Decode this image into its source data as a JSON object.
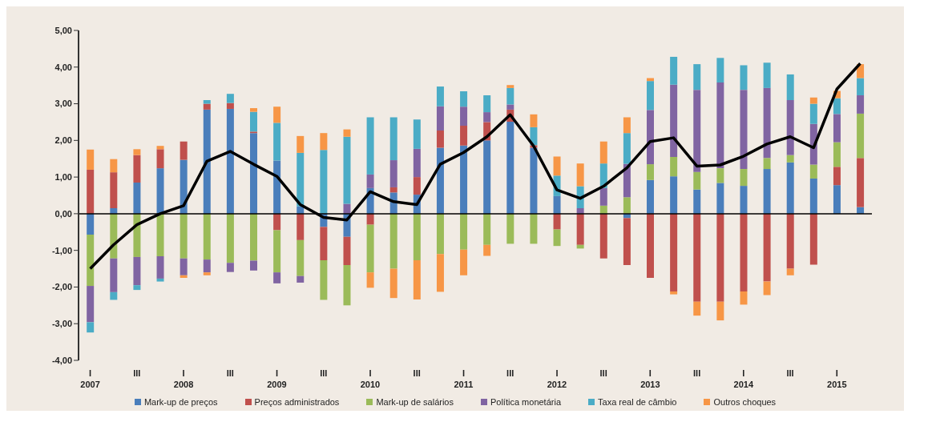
{
  "chart_data": {
    "type": "bar",
    "stacked": true,
    "categories": [
      "I\n2007",
      null,
      "III",
      null,
      "I\n2008",
      null,
      "III",
      null,
      "I\n2009",
      null,
      "III",
      null,
      "I\n2010",
      null,
      "III",
      null,
      "I\n2011",
      null,
      "III",
      null,
      "I\n2012",
      null,
      "III",
      null,
      "I\n2013",
      null,
      "III",
      null,
      "I\n2014",
      null,
      "III",
      null,
      "I\n2015",
      null
    ],
    "series": [
      {
        "name": "Mark-up de preços",
        "color": "#4a7ebb",
        "values": [
          -0.57,
          0.15,
          0.85,
          1.24,
          1.47,
          2.84,
          2.86,
          2.2,
          1.45,
          0.2,
          -0.36,
          -0.63,
          0.7,
          0.58,
          0.52,
          1.8,
          1.86,
          2.0,
          2.51,
          1.8,
          0.48,
          0,
          0,
          -0.12,
          0.92,
          1.02,
          0.66,
          0.84,
          0.76,
          1.22,
          1.4,
          0.96,
          0.78,
          0.18
        ]
      },
      {
        "name": "Preços administrados",
        "color": "#c0504d",
        "values": [
          1.2,
          0.98,
          0.75,
          0.52,
          0.5,
          0.16,
          0.16,
          0.04,
          -0.45,
          -0.72,
          -0.91,
          -0.77,
          -0.3,
          0.14,
          0.48,
          0.47,
          0.54,
          0.5,
          0.33,
          0.07,
          -0.43,
          -0.85,
          -1.22,
          -1.28,
          -1.75,
          -2.12,
          -2.4,
          -2.4,
          -2.12,
          -1.85,
          -1.5,
          -1.39,
          0.5,
          1.34
        ]
      },
      {
        "name": "Mark-up de salários",
        "color": "#9bbb59",
        "values": [
          -1.4,
          -1.22,
          -1.18,
          -1.16,
          -1.22,
          -1.25,
          -1.34,
          -1.28,
          -1.15,
          -0.98,
          -1.08,
          -1.1,
          -1.3,
          -1.5,
          -1.27,
          -1.1,
          -0.98,
          -0.85,
          -0.82,
          -0.82,
          -0.45,
          -0.1,
          0.22,
          0.45,
          0.43,
          0.53,
          0.48,
          0.4,
          0.46,
          0.3,
          0.2,
          0.38,
          0.67,
          1.21
        ]
      },
      {
        "name": "Política monetária",
        "color": "#8064a2",
        "values": [
          -0.99,
          -0.92,
          -0.77,
          -0.61,
          -0.46,
          -0.35,
          -0.25,
          -0.27,
          -0.3,
          -0.18,
          0,
          0.27,
          0.37,
          0.74,
          0.77,
          0.66,
          0.52,
          0.27,
          0.14,
          0,
          0,
          0.15,
          0.48,
          0.91,
          1.48,
          1.97,
          2.24,
          2.34,
          2.16,
          1.91,
          1.5,
          1.11,
          0.77,
          0.5
        ]
      },
      {
        "name": "Taxa real de câmbio",
        "color": "#4bacc6",
        "values": [
          -0.28,
          -0.21,
          -0.13,
          -0.08,
          0,
          0.1,
          0.25,
          0.54,
          1.03,
          1.46,
          1.74,
          1.83,
          1.56,
          1.17,
          0.8,
          0.54,
          0.42,
          0.46,
          0.45,
          0.49,
          0.56,
          0.6,
          0.67,
          0.84,
          0.79,
          0.76,
          0.7,
          0.67,
          0.67,
          0.69,
          0.7,
          0.55,
          0.43,
          0.47
        ]
      },
      {
        "name": "Outros choques",
        "color": "#f79646",
        "values": [
          0.55,
          0.36,
          0.16,
          0.09,
          -0.07,
          -0.08,
          0,
          0.1,
          0.44,
          0.46,
          0.46,
          0.2,
          -0.42,
          -0.8,
          -1.07,
          -1.03,
          -0.7,
          -0.3,
          0.08,
          0.35,
          0.52,
          0.62,
          0.6,
          0.43,
          0.08,
          -0.08,
          -0.38,
          -0.51,
          -0.36,
          -0.37,
          -0.18,
          0.17,
          0.2,
          0.38
        ]
      },
      {
        "type": "line",
        "color": "#000000",
        "values": [
          -1.5,
          -0.85,
          -0.3,
          0,
          0.22,
          1.43,
          1.7,
          1.35,
          1.02,
          0.25,
          -0.1,
          -0.17,
          0.6,
          0.33,
          0.25,
          1.35,
          1.67,
          2.1,
          2.7,
          1.85,
          0.65,
          0.42,
          0.75,
          1.25,
          1.97,
          2.07,
          1.3,
          1.33,
          1.57,
          1.9,
          2.1,
          1.8,
          3.4,
          4.1
        ]
      }
    ],
    "ylim": [
      -4,
      5
    ],
    "yticks": [
      {
        "value": -4,
        "label": "-4,00"
      },
      {
        "value": -3,
        "label": "-3,00"
      },
      {
        "value": -2,
        "label": "-2,00"
      },
      {
        "value": -1,
        "label": "-1,00"
      },
      {
        "value": 0,
        "label": "0,00"
      },
      {
        "value": 1,
        "label": "1,00"
      },
      {
        "value": 2,
        "label": "2,00"
      },
      {
        "value": 3,
        "label": "3,00"
      },
      {
        "value": 4,
        "label": "4,00"
      },
      {
        "value": 5,
        "label": "5,00"
      }
    ],
    "ref_lines": [
      {
        "axis": "y",
        "value": 0,
        "color": "#000000"
      }
    ],
    "grid": false,
    "legend": "bottom",
    "marker": "none",
    "line_style": "solid"
  }
}
